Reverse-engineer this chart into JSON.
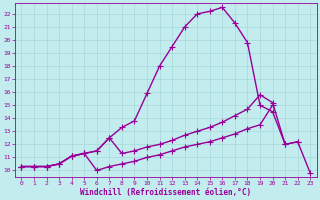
{
  "xlabel": "Windchill (Refroidissement éolien,°C)",
  "xlim": [
    -0.5,
    23.5
  ],
  "ylim": [
    9.5,
    22.8
  ],
  "xticks": [
    0,
    1,
    2,
    3,
    4,
    5,
    6,
    7,
    8,
    9,
    10,
    11,
    12,
    13,
    14,
    15,
    16,
    17,
    18,
    19,
    20,
    21,
    22,
    23
  ],
  "yticks": [
    10,
    11,
    12,
    13,
    14,
    15,
    16,
    17,
    18,
    19,
    20,
    21,
    22
  ],
  "bg_color": "#c2ecee",
  "grid_color": "#a8d8da",
  "line_color": "#990099",
  "curve_main_x": [
    0,
    1,
    2,
    3,
    4,
    5,
    6,
    7,
    8,
    9,
    10,
    11,
    12,
    13,
    14,
    15,
    16,
    17,
    18,
    19,
    20,
    21,
    22,
    23
  ],
  "curve_main_y": [
    10.3,
    10.3,
    10.3,
    10.5,
    11.1,
    11.3,
    11.5,
    12.5,
    13.3,
    13.8,
    15.9,
    18.0,
    19.5,
    21.0,
    22.0,
    22.2,
    22.5,
    21.3,
    19.8,
    15.0,
    14.5,
    12.0,
    12.2,
    9.8
  ],
  "curve_upper_x": [
    0,
    1,
    2,
    3,
    4,
    5,
    6,
    7,
    8,
    9,
    10,
    11,
    12,
    13,
    14,
    15,
    16,
    17,
    18,
    19,
    20,
    21,
    22
  ],
  "curve_upper_y": [
    10.3,
    10.3,
    10.3,
    10.5,
    11.1,
    11.3,
    11.5,
    12.5,
    11.3,
    11.5,
    11.8,
    12.0,
    12.3,
    12.7,
    13.0,
    13.3,
    13.7,
    14.2,
    14.7,
    15.8,
    15.2,
    12.0,
    12.2
  ],
  "curve_lower_x": [
    0,
    1,
    2,
    3,
    4,
    5,
    6,
    7,
    8,
    9,
    10,
    11,
    12,
    13,
    14,
    15,
    16,
    17,
    18,
    19,
    20
  ],
  "curve_lower_y": [
    10.3,
    10.3,
    10.3,
    10.5,
    11.1,
    11.3,
    10.0,
    10.3,
    10.5,
    10.7,
    11.0,
    11.2,
    11.5,
    11.8,
    12.0,
    12.2,
    12.5,
    12.8,
    13.2,
    13.5,
    15.0
  ],
  "marker": "+",
  "markersize": 4,
  "linewidth": 1.0
}
